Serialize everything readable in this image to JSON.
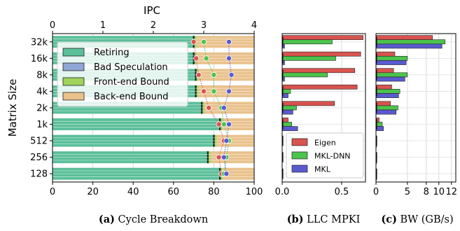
{
  "chart_data": [
    {
      "id": "a",
      "type": "bar",
      "subtype": "stacked-horizontal-with-ipc-markers",
      "caption_label": "(a)",
      "caption_text": "Cycle Breakdown",
      "ylabel": "Matrix Size",
      "categories": [
        "32k",
        "16k",
        "8k",
        "4k",
        "2k",
        "1k",
        "512",
        "256",
        "128"
      ],
      "xlim": [
        0,
        100
      ],
      "xticks": [
        "0",
        "20",
        "40",
        "60",
        "80",
        "100"
      ],
      "top_axis": {
        "label": "IPC",
        "lim": [
          0,
          4
        ],
        "ticks": [
          "0",
          "1",
          "2",
          "3",
          "4"
        ]
      },
      "series": [
        {
          "name": "Retiring",
          "color": "#5bbf9a",
          "values": [
            70,
            70,
            71,
            71,
            74,
            83,
            80,
            77,
            83
          ]
        },
        {
          "name": "Bad Speculation",
          "color": "#8fa6d6",
          "values": [
            0.5,
            0.5,
            0.5,
            0.5,
            0.5,
            0.5,
            0.5,
            0.5,
            0.5
          ]
        },
        {
          "name": "Front-end Bound",
          "color": "#9fd35c",
          "values": [
            1,
            1,
            1,
            1,
            1,
            1,
            1,
            1,
            1
          ]
        },
        {
          "name": "Back-end Bound",
          "color": "#e9c28c",
          "values": [
            28.5,
            28.5,
            27.5,
            27.5,
            24.5,
            15.5,
            18.5,
            21.5,
            15.5
          ]
        }
      ],
      "ipc_markers": [
        {
          "name": "red",
          "color": "#d9534f",
          "values": [
            2.8,
            2.85,
            2.9,
            3.0,
            3.1,
            3.3,
            3.4,
            3.3,
            3.35
          ]
        },
        {
          "name": "green",
          "color": "#4cc34c",
          "values": [
            3.0,
            3.05,
            3.2,
            3.2,
            3.35,
            3.4,
            3.5,
            3.45,
            3.4
          ]
        },
        {
          "name": "blue",
          "color": "#5a5ad0",
          "values": [
            3.5,
            3.5,
            3.55,
            3.5,
            3.4,
            3.5,
            3.45,
            3.4,
            3.45
          ]
        }
      ]
    },
    {
      "id": "b",
      "type": "bar",
      "subtype": "grouped-horizontal",
      "caption_label": "(b)",
      "caption_text": "LLC MPKI",
      "xlim": [
        0,
        0.7
      ],
      "xticks": [
        0,
        0.5
      ],
      "xtick_labels": [
        "0.0",
        "0.5"
      ],
      "series": [
        {
          "name": "Eigen",
          "color": "#d9534f",
          "values": [
            0.68,
            0.66,
            0.61,
            0.63,
            0.44,
            0.05,
            0,
            0,
            0
          ]
        },
        {
          "name": "MKL-DNN",
          "color": "#4cc34c",
          "values": [
            0.42,
            0.45,
            0.38,
            0.07,
            0.12,
            0.08,
            0,
            0,
            0
          ]
        },
        {
          "name": "MKL",
          "color": "#5a5ad0",
          "values": [
            0.02,
            0.02,
            0.02,
            0.05,
            0.09,
            0.13,
            0,
            0,
            0
          ]
        }
      ],
      "legend_position": "lower-left"
    },
    {
      "id": "c",
      "type": "bar",
      "subtype": "grouped-horizontal",
      "caption_label": "(c)",
      "caption_text": "BW (GB/s)",
      "xlim": [
        0,
        12.7
      ],
      "xticks": [
        0,
        5,
        8,
        10,
        12
      ],
      "xtick_labels": [
        "0",
        "5",
        "8",
        "10",
        "12"
      ],
      "series": [
        {
          "name": "Eigen",
          "color": "#d9534f",
          "values": [
            9.0,
            3.0,
            2.8,
            2.5,
            2.3,
            0.5,
            0,
            0,
            0
          ]
        },
        {
          "name": "MKL-DNN",
          "color": "#4cc34c",
          "values": [
            11.0,
            5.0,
            5.0,
            3.8,
            3.5,
            1.0,
            0.1,
            0.1,
            0.1
          ]
        },
        {
          "name": "MKL",
          "color": "#5a5ad0",
          "values": [
            10.5,
            4.8,
            4.6,
            3.6,
            3.2,
            1.2,
            0.1,
            0.1,
            0.1
          ]
        }
      ]
    }
  ]
}
